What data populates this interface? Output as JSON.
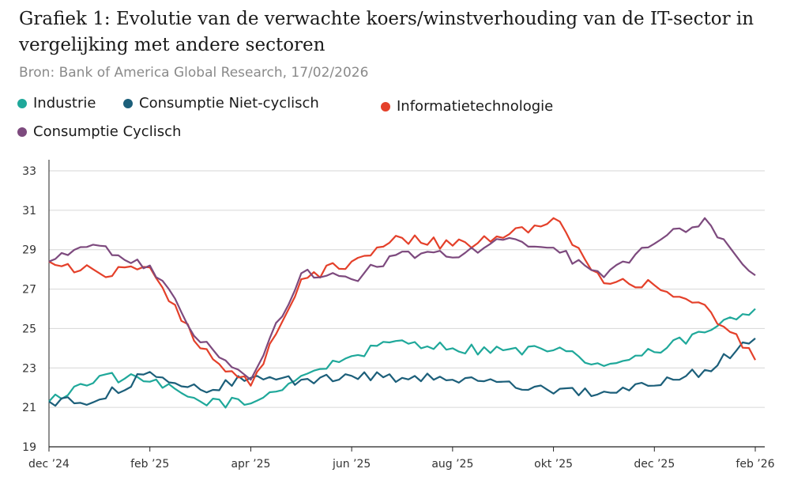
{
  "chart_data": {
    "type": "line",
    "title": "Grafiek 1: Evolutie van de verwachte koers/winstverhouding van de IT-sector in vergelijking met andere sectoren",
    "subtitle": "Bron: Bank of America Global Research, 17/02/2026",
    "xlabel": "",
    "ylabel": "",
    "ylim": [
      19,
      33
    ],
    "yticks": [
      19,
      21,
      23,
      25,
      27,
      29,
      31,
      33
    ],
    "x": [
      "dec '24",
      "jan '25",
      "feb '25",
      "mrt '25",
      "apr '25",
      "mei '25",
      "jun '25",
      "jul '25",
      "aug '25",
      "sep '25",
      "okt '25",
      "nov '25",
      "dec '25",
      "jan '26",
      "feb '26"
    ],
    "xticks": [
      "dec ’24",
      "feb ’25",
      "apr ’25",
      "jun ’25",
      "aug ’25",
      "okt ’25",
      "dec ’25",
      "feb ’26"
    ],
    "grid": true,
    "legend_position": "top-left",
    "series": [
      {
        "name": "Industrie",
        "color": "#1fa89a",
        "values": [
          21.3,
          22.6,
          22.3,
          21.3,
          21.2,
          22.6,
          23.6,
          24.4,
          24.0,
          23.9,
          23.9,
          23.1,
          23.8,
          24.8,
          26.0
        ]
      },
      {
        "name": "Consumptie Niet-cyclisch",
        "color": "#1c5f7a",
        "values": [
          21.3,
          21.4,
          22.8,
          21.9,
          22.5,
          22.4,
          22.6,
          22.5,
          22.4,
          22.3,
          21.7,
          21.8,
          22.1,
          22.9,
          24.5
        ]
      },
      {
        "name": "Informatietechnologie",
        "color": "#e4402a",
        "values": [
          28.4,
          27.8,
          28.1,
          24.0,
          22.1,
          27.5,
          28.4,
          29.6,
          29.2,
          29.6,
          30.6,
          27.3,
          27.2,
          26.2,
          23.4
        ]
      },
      {
        "name": "Consumptie Cyclisch",
        "color": "#7d4a7e",
        "values": [
          28.4,
          29.2,
          28.2,
          24.3,
          22.4,
          27.8,
          27.5,
          28.9,
          28.6,
          29.5,
          29.1,
          27.6,
          29.3,
          30.6,
          27.7
        ]
      }
    ]
  }
}
